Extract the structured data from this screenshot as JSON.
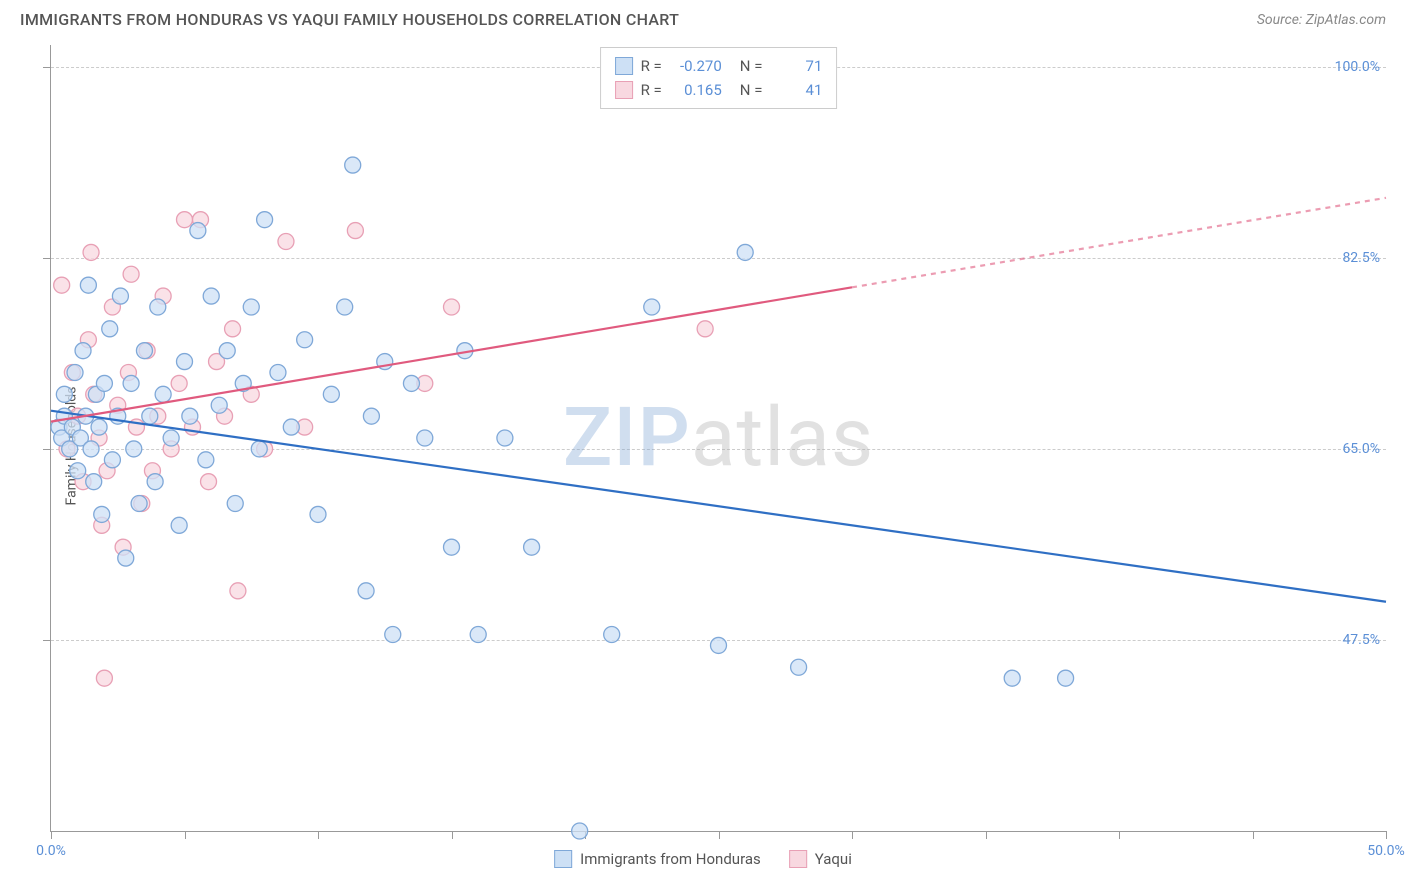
{
  "header": {
    "title": "IMMIGRANTS FROM HONDURAS VS YAQUI FAMILY HOUSEHOLDS CORRELATION CHART",
    "source": "Source: ZipAtlas.com"
  },
  "y_axis_label": "Family Households",
  "watermark": {
    "part1": "ZIP",
    "part2": "atlas"
  },
  "chart": {
    "type": "scatter",
    "xlim": [
      0,
      50
    ],
    "ylim": [
      30,
      102
    ],
    "x_ticks": [
      0,
      5,
      10,
      15,
      20,
      25,
      30,
      35,
      40,
      45,
      50
    ],
    "x_tick_labels": {
      "0": "0.0%",
      "50": "50.0%"
    },
    "y_gridlines": [
      47.5,
      65.0,
      82.5,
      100.0
    ],
    "y_tick_labels": [
      "47.5%",
      "65.0%",
      "82.5%",
      "100.0%"
    ],
    "background_color": "#ffffff",
    "grid_color": "#cccccc",
    "axis_color": "#999999",
    "tick_label_color": "#5b8fd6",
    "marker_radius": 8,
    "marker_stroke_width": 1.3,
    "line_width": 2.2
  },
  "series": [
    {
      "name": "Immigrants from Honduras",
      "short": "honduras",
      "fill": "#cde0f5",
      "stroke": "#7fa8d8",
      "line_color": "#2f6fc4",
      "R": "-0.270",
      "N": "71",
      "trend": {
        "x1": 0,
        "y1": 68.5,
        "x2": 50,
        "y2": 51.0,
        "dashed_from": null
      },
      "points": [
        [
          0.3,
          67
        ],
        [
          0.4,
          66
        ],
        [
          0.5,
          68
        ],
        [
          0.5,
          70
        ],
        [
          0.7,
          65
        ],
        [
          0.8,
          67
        ],
        [
          0.9,
          72
        ],
        [
          1.0,
          63
        ],
        [
          1.1,
          66
        ],
        [
          1.2,
          74
        ],
        [
          1.3,
          68
        ],
        [
          1.4,
          80
        ],
        [
          1.5,
          65
        ],
        [
          1.6,
          62
        ],
        [
          1.7,
          70
        ],
        [
          1.8,
          67
        ],
        [
          1.9,
          59
        ],
        [
          2.0,
          71
        ],
        [
          2.2,
          76
        ],
        [
          2.3,
          64
        ],
        [
          2.5,
          68
        ],
        [
          2.6,
          79
        ],
        [
          2.8,
          55
        ],
        [
          3.0,
          71
        ],
        [
          3.1,
          65
        ],
        [
          3.3,
          60
        ],
        [
          3.5,
          74
        ],
        [
          3.7,
          68
        ],
        [
          3.9,
          62
        ],
        [
          4.0,
          78
        ],
        [
          4.2,
          70
        ],
        [
          4.5,
          66
        ],
        [
          4.8,
          58
        ],
        [
          5.0,
          73
        ],
        [
          5.2,
          68
        ],
        [
          5.5,
          85
        ],
        [
          5.8,
          64
        ],
        [
          6.0,
          79
        ],
        [
          6.3,
          69
        ],
        [
          6.6,
          74
        ],
        [
          6.9,
          60
        ],
        [
          7.2,
          71
        ],
        [
          7.5,
          78
        ],
        [
          7.8,
          65
        ],
        [
          8.0,
          86
        ],
        [
          8.5,
          72
        ],
        [
          9.0,
          67
        ],
        [
          9.5,
          75
        ],
        [
          10.0,
          59
        ],
        [
          10.5,
          70
        ],
        [
          11.0,
          78
        ],
        [
          11.3,
          91
        ],
        [
          11.8,
          52
        ],
        [
          12.0,
          68
        ],
        [
          12.5,
          73
        ],
        [
          12.8,
          48
        ],
        [
          13.5,
          71
        ],
        [
          14.0,
          66
        ],
        [
          15.0,
          56
        ],
        [
          15.5,
          74
        ],
        [
          16.0,
          48
        ],
        [
          17.0,
          66
        ],
        [
          18.0,
          56
        ],
        [
          19.8,
          30
        ],
        [
          21.0,
          48
        ],
        [
          22.5,
          78
        ],
        [
          25.0,
          47
        ],
        [
          26.0,
          83
        ],
        [
          28.0,
          45
        ],
        [
          36.0,
          44
        ],
        [
          38.0,
          44
        ]
      ]
    },
    {
      "name": "Yaqui",
      "short": "yaqui",
      "fill": "#f8d8e0",
      "stroke": "#e8a0b5",
      "line_color": "#e05a7e",
      "R": "0.165",
      "N": "41",
      "trend": {
        "x1": 0,
        "y1": 67.5,
        "x2": 50,
        "y2": 88.0,
        "dashed_from": 30
      },
      "points": [
        [
          0.4,
          80
        ],
        [
          0.6,
          65
        ],
        [
          0.8,
          72
        ],
        [
          1.0,
          68
        ],
        [
          1.2,
          62
        ],
        [
          1.4,
          75
        ],
        [
          1.5,
          83
        ],
        [
          1.6,
          70
        ],
        [
          1.8,
          66
        ],
        [
          1.9,
          58
        ],
        [
          2.0,
          44
        ],
        [
          2.1,
          63
        ],
        [
          2.3,
          78
        ],
        [
          2.5,
          69
        ],
        [
          2.7,
          56
        ],
        [
          2.9,
          72
        ],
        [
          3.0,
          81
        ],
        [
          3.2,
          67
        ],
        [
          3.4,
          60
        ],
        [
          3.6,
          74
        ],
        [
          3.8,
          63
        ],
        [
          4.0,
          68
        ],
        [
          4.2,
          79
        ],
        [
          4.5,
          65
        ],
        [
          4.8,
          71
        ],
        [
          5.0,
          86
        ],
        [
          5.3,
          67
        ],
        [
          5.6,
          86
        ],
        [
          5.9,
          62
        ],
        [
          6.2,
          73
        ],
        [
          6.5,
          68
        ],
        [
          6.8,
          76
        ],
        [
          7.0,
          52
        ],
        [
          7.5,
          70
        ],
        [
          8.0,
          65
        ],
        [
          8.8,
          84
        ],
        [
          9.5,
          67
        ],
        [
          11.4,
          85
        ],
        [
          14.0,
          71
        ],
        [
          15.0,
          78
        ],
        [
          24.5,
          76
        ]
      ]
    }
  ],
  "legend_top": {
    "r_label": "R =",
    "n_label": "N ="
  },
  "legend_bottom": {
    "items": [
      "Immigrants from Honduras",
      "Yaqui"
    ]
  }
}
